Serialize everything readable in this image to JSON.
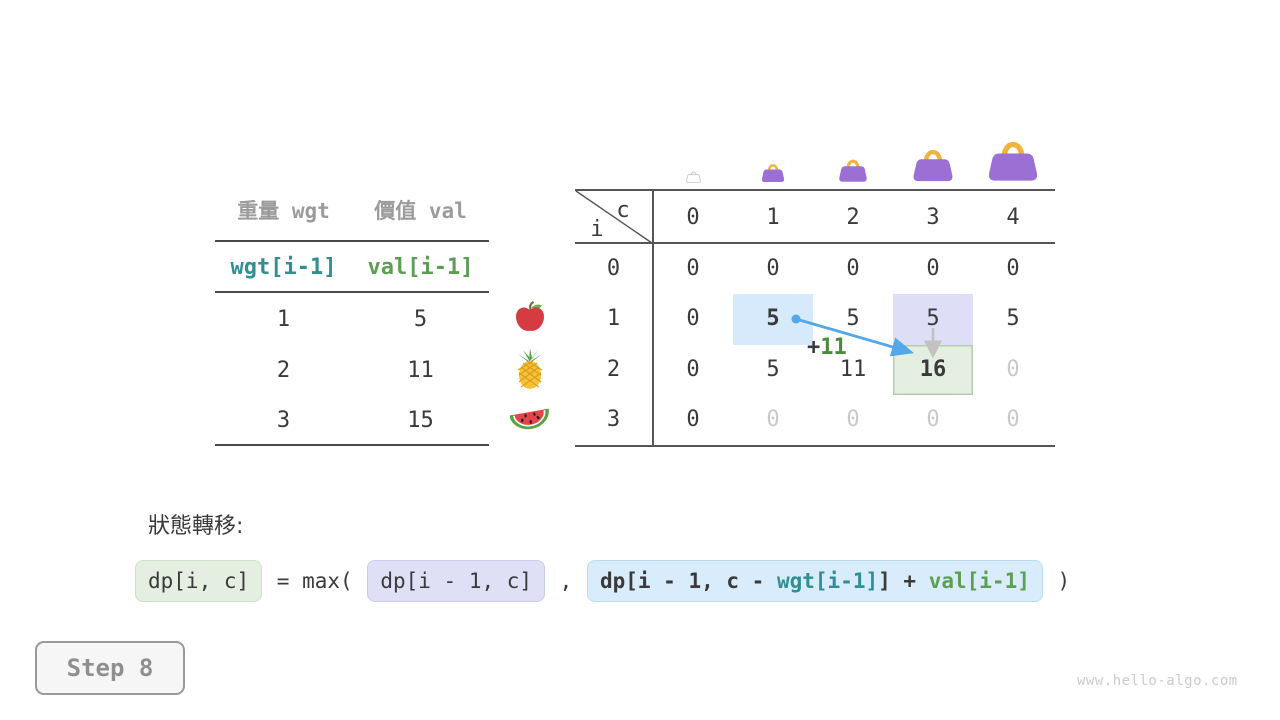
{
  "colors": {
    "ink": "#3a3a3a",
    "gray": "#9b9b9b",
    "dim": "#c9c9c9",
    "teal": "#2f8f92",
    "green": "#5c9e53",
    "green-dark": "#4d8a3f",
    "line": "#555555",
    "hl-blue": "#d7eafb",
    "hl-lavender": "#dedff6",
    "hl-green": "#e5efe1",
    "hl-green-border": "#b4cfad",
    "arrow-blue": "#54a7e8",
    "arrow-gray": "#c2c2c2",
    "bag-purple": "#9b6fd3",
    "bag-handle": "#f2b23e"
  },
  "items_table": {
    "headers": [
      "重量 wgt",
      "價值 val"
    ],
    "subheaders": [
      {
        "text": "wgt[i-1]",
        "color": "teal"
      },
      {
        "text": "val[i-1]",
        "color": "green"
      }
    ],
    "rows": [
      [
        "1",
        "5"
      ],
      [
        "2",
        "11"
      ],
      [
        "3",
        "15"
      ]
    ]
  },
  "fruit_icons": [
    "apple-icon",
    "pineapple-icon",
    "watermelon-icon"
  ],
  "dp_table": {
    "corner_row_var": "i",
    "corner_col_var": "c",
    "col_headers": [
      "0",
      "1",
      "2",
      "3",
      "4"
    ],
    "row_headers": [
      "0",
      "1",
      "2",
      "3"
    ],
    "bag_icons": [
      "bag-outline-icon",
      "bag-icon",
      "bag-icon",
      "bag-icon",
      "bag-icon"
    ],
    "cells": [
      [
        "0",
        "0",
        "0",
        "0",
        "0"
      ],
      [
        "0",
        "5",
        "5",
        "5",
        "5"
      ],
      [
        "0",
        "5",
        "11",
        "16",
        "0"
      ],
      [
        "0",
        "0",
        "0",
        "0",
        "0"
      ]
    ],
    "cell_styles": [
      [
        "",
        "",
        "",
        "",
        ""
      ],
      [
        "",
        "bold hl-blue",
        "",
        "hl-lavender",
        ""
      ],
      [
        "",
        "",
        "",
        "bold hl-green",
        "dim"
      ],
      [
        "",
        "dim",
        "dim",
        "dim",
        "dim"
      ]
    ],
    "annotation": {
      "prefix": "+",
      "value": "11"
    }
  },
  "formula": {
    "label": "狀態轉移:",
    "segments": [
      {
        "box": "green",
        "bold": false,
        "parts": [
          {
            "text": "dp[i, c]",
            "color": "ink"
          }
        ]
      },
      {
        "box": null,
        "bold": false,
        "parts": [
          {
            "text": " = max( ",
            "color": "ink"
          }
        ]
      },
      {
        "box": "lavender",
        "bold": false,
        "parts": [
          {
            "text": "dp[i - 1, c]",
            "color": "ink"
          }
        ]
      },
      {
        "box": null,
        "bold": false,
        "parts": [
          {
            "text": " , ",
            "color": "ink"
          }
        ]
      },
      {
        "box": "blue",
        "bold": true,
        "parts": [
          {
            "text": "dp[i - 1, c - ",
            "color": "ink"
          },
          {
            "text": "wgt[i-1]",
            "color": "teal"
          },
          {
            "text": "] + ",
            "color": "ink"
          },
          {
            "text": "val[i-1]",
            "color": "green"
          }
        ]
      },
      {
        "box": null,
        "bold": false,
        "parts": [
          {
            "text": " )",
            "color": "ink"
          }
        ]
      }
    ]
  },
  "step_badge": "Step 8",
  "watermark": "www.hello-algo.com"
}
